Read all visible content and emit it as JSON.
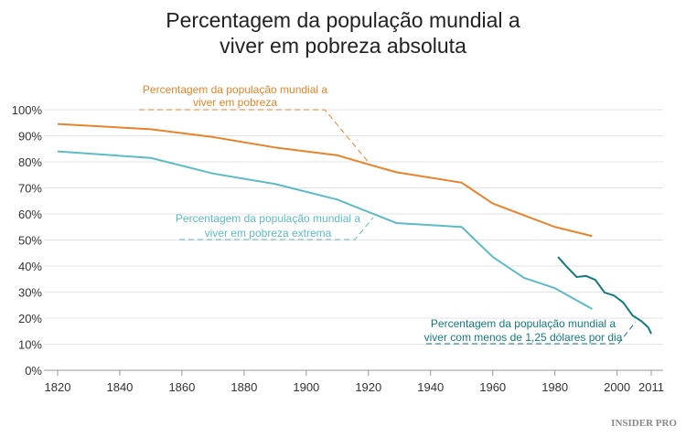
{
  "chart_data": {
    "type": "line",
    "title": [
      "Percentagem da população mundial a",
      "viver em pobreza absoluta"
    ],
    "xlim": [
      1820,
      2011
    ],
    "ylim": [
      0,
      100
    ],
    "grid": "horizontal",
    "x_ticks": [
      "1820",
      "1840",
      "1860",
      "1880",
      "1900",
      "1920",
      "1940",
      "1960",
      "1980",
      "2000",
      "2011"
    ],
    "y_ticks": [
      "0%",
      "10%",
      "20%",
      "30%",
      "40%",
      "50%",
      "60%",
      "70%",
      "80%",
      "90%",
      "100%"
    ],
    "series": [
      {
        "name": [
          "Percentagem da população mundial a",
          "viver em pobreza"
        ],
        "color": "#e8832a",
        "x": [
          1820,
          1850,
          1870,
          1890,
          1910,
          1920,
          1929,
          1950,
          1960,
          1970,
          1980,
          1992
        ],
        "y": [
          94.5,
          92.5,
          89.5,
          85.5,
          82.5,
          79,
          76,
          72,
          64,
          59.5,
          55,
          51.5
        ]
      },
      {
        "name": [
          "Percentagem da população mundial a",
          "viver em pobreza extrema"
        ],
        "color": "#5bbcc6",
        "x": [
          1820,
          1850,
          1870,
          1890,
          1910,
          1929,
          1950,
          1960,
          1970,
          1980,
          1992
        ],
        "y": [
          84,
          81.5,
          75.5,
          71.5,
          65.5,
          56.5,
          55,
          43.5,
          35.5,
          31.5,
          23.5
        ]
      },
      {
        "name": [
          "Percentagem da população mundial a",
          "viver com menos de 1,25 dólares por dia"
        ],
        "color": "#137a7f",
        "x": [
          1981,
          1984,
          1987,
          1990,
          1993,
          1996,
          1999,
          2002,
          2005,
          2008,
          2010,
          2011
        ],
        "y": [
          43.5,
          39.5,
          35.8,
          36.2,
          34.7,
          29.8,
          28.7,
          26,
          21,
          18.7,
          16.5,
          14
        ]
      }
    ]
  },
  "watermark": "INSIDER PRO"
}
